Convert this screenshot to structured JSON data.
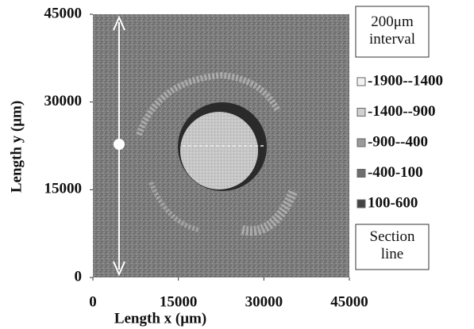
{
  "chart_data": {
    "type": "contour",
    "x_label": "Length x (μm)",
    "y_label": "Length y (μm)",
    "xlim": [
      0,
      45000
    ],
    "xticks": [
      0,
      15000,
      30000,
      45000
    ],
    "ylim": [
      0,
      45000
    ],
    "yticks": [
      0,
      15000,
      30000,
      45000
    ],
    "legend": [
      {
        "name": "-1900--1400",
        "color": "#f2f2f2"
      },
      {
        "name": "-1400--900",
        "color": "#d0d0d0"
      },
      {
        "name": "-900--400",
        "color": "#9a9a9a"
      },
      {
        "name": "-400-100",
        "color": "#6e6e6e"
      },
      {
        "name": "100-600",
        "color": "#444444"
      }
    ],
    "annotations": [
      "200μm interval",
      "Section line"
    ]
  }
}
